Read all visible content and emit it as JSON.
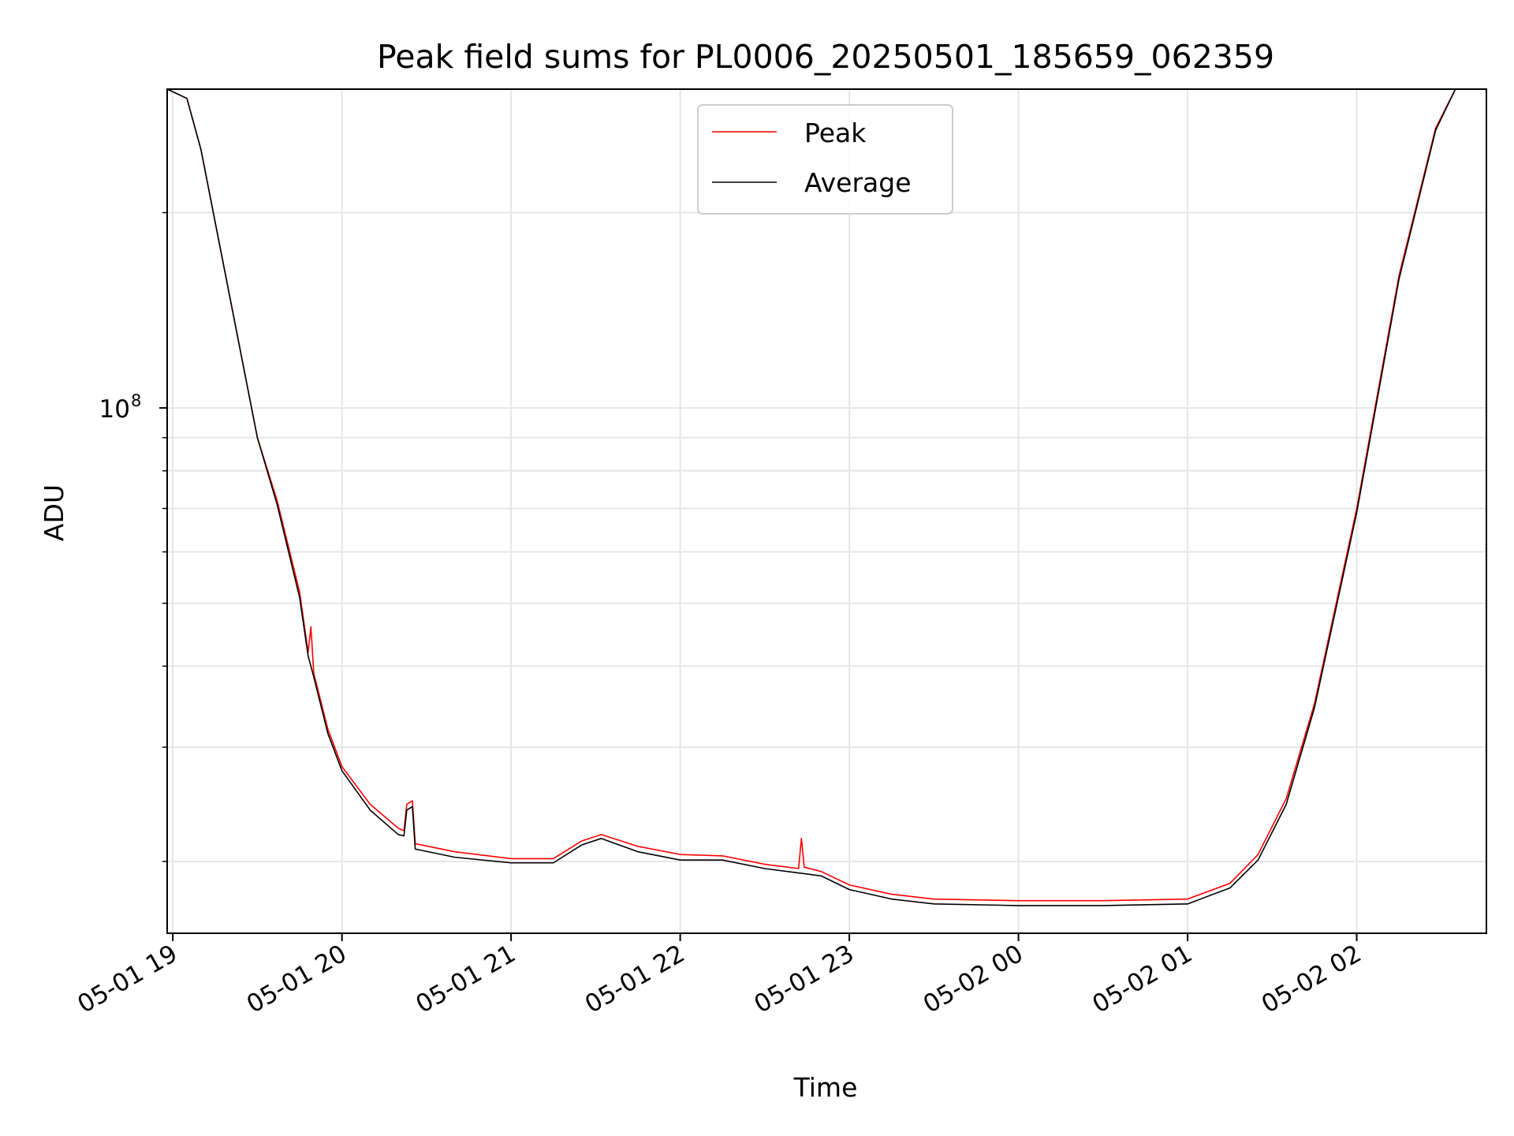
{
  "chart_data": {
    "type": "line",
    "title": "Peak field sums for PL0006_20250501_185659_062359",
    "xlabel": "Time",
    "ylabel": "ADU",
    "y_scale": "log",
    "grid": true,
    "legend_position": "top-center",
    "x_range": [
      "05-01 18:58",
      "05-02 02:46"
    ],
    "y_range": [
      15500000,
      310000000
    ],
    "x_ticks": [
      "05-01 19",
      "05-01 20",
      "05-01 21",
      "05-01 22",
      "05-01 23",
      "05-02 00",
      "05-02 01",
      "05-02 02"
    ],
    "y_major_tick": {
      "label_base": "10",
      "label_exp": "8",
      "value": 100000000
    },
    "y_minor_ticks": [
      20000000,
      30000000,
      40000000,
      50000000,
      60000000,
      70000000,
      80000000,
      90000000,
      200000000
    ],
    "series": [
      {
        "name": "Peak",
        "color": "#ff0000",
        "points": [
          [
            "05-01 18:58",
            310000000
          ],
          [
            "05-01 19:05",
            300000000
          ],
          [
            "05-01 19:10",
            250000000
          ],
          [
            "05-01 19:20",
            150000000
          ],
          [
            "05-01 19:30",
            90000000
          ],
          [
            "05-01 19:37",
            72000000
          ],
          [
            "05-01 19:45",
            52000000
          ],
          [
            "05-01 19:48",
            42000000
          ],
          [
            "05-01 19:49",
            46000000
          ],
          [
            "05-01 19:50",
            39000000
          ],
          [
            "05-01 19:55",
            32000000
          ],
          [
            "05-01 20:00",
            28000000
          ],
          [
            "05-01 20:10",
            24500000
          ],
          [
            "05-01 20:20",
            22500000
          ],
          [
            "05-01 20:22",
            22300000
          ],
          [
            "05-01 20:23",
            24500000
          ],
          [
            "05-01 20:25",
            24800000
          ],
          [
            "05-01 20:26",
            21300000
          ],
          [
            "05-01 20:40",
            20700000
          ],
          [
            "05-01 21:00",
            20200000
          ],
          [
            "05-01 21:15",
            20200000
          ],
          [
            "05-01 21:25",
            21500000
          ],
          [
            "05-01 21:32",
            22000000
          ],
          [
            "05-01 21:45",
            21100000
          ],
          [
            "05-01 22:00",
            20500000
          ],
          [
            "05-01 22:15",
            20400000
          ],
          [
            "05-01 22:30",
            19800000
          ],
          [
            "05-01 22:42",
            19500000
          ],
          [
            "05-01 22:43",
            21700000
          ],
          [
            "05-01 22:44",
            19600000
          ],
          [
            "05-01 22:50",
            19300000
          ],
          [
            "05-01 23:00",
            18400000
          ],
          [
            "05-01 23:15",
            17800000
          ],
          [
            "05-01 23:30",
            17500000
          ],
          [
            "05-02 00:00",
            17400000
          ],
          [
            "05-02 00:30",
            17400000
          ],
          [
            "05-02 01:00",
            17500000
          ],
          [
            "05-02 01:15",
            18500000
          ],
          [
            "05-02 01:25",
            20500000
          ],
          [
            "05-02 01:35",
            25000000
          ],
          [
            "05-02 01:45",
            35000000
          ],
          [
            "05-02 02:00",
            70000000
          ],
          [
            "05-02 02:15",
            160000000
          ],
          [
            "05-02 02:28",
            270000000
          ],
          [
            "05-02 02:35",
            310000000
          ],
          [
            "05-02 02:46",
            310000000
          ]
        ]
      },
      {
        "name": "Average",
        "color": "#000000",
        "points": [
          [
            "05-01 18:58",
            310000000
          ],
          [
            "05-01 19:05",
            300000000
          ],
          [
            "05-01 19:10",
            250000000
          ],
          [
            "05-01 19:20",
            150000000
          ],
          [
            "05-01 19:30",
            90000000
          ],
          [
            "05-01 19:37",
            71000000
          ],
          [
            "05-01 19:45",
            51000000
          ],
          [
            "05-01 19:48",
            41500000
          ],
          [
            "05-01 19:50",
            38500000
          ],
          [
            "05-01 19:55",
            31500000
          ],
          [
            "05-01 20:00",
            27600000
          ],
          [
            "05-01 20:10",
            24000000
          ],
          [
            "05-01 20:20",
            22000000
          ],
          [
            "05-01 20:22",
            21900000
          ],
          [
            "05-01 20:23",
            24000000
          ],
          [
            "05-01 20:25",
            24300000
          ],
          [
            "05-01 20:26",
            20900000
          ],
          [
            "05-01 20:40",
            20300000
          ],
          [
            "05-01 21:00",
            19900000
          ],
          [
            "05-01 21:15",
            19900000
          ],
          [
            "05-01 21:25",
            21200000
          ],
          [
            "05-01 21:32",
            21700000
          ],
          [
            "05-01 21:45",
            20700000
          ],
          [
            "05-01 22:00",
            20100000
          ],
          [
            "05-01 22:15",
            20100000
          ],
          [
            "05-01 22:30",
            19500000
          ],
          [
            "05-01 22:42",
            19200000
          ],
          [
            "05-01 22:50",
            19000000
          ],
          [
            "05-01 23:00",
            18100000
          ],
          [
            "05-01 23:15",
            17500000
          ],
          [
            "05-01 23:30",
            17200000
          ],
          [
            "05-02 00:00",
            17100000
          ],
          [
            "05-02 00:30",
            17100000
          ],
          [
            "05-02 01:00",
            17200000
          ],
          [
            "05-02 01:15",
            18200000
          ],
          [
            "05-02 01:25",
            20100000
          ],
          [
            "05-02 01:35",
            24500000
          ],
          [
            "05-02 01:45",
            34500000
          ],
          [
            "05-02 02:00",
            69000000
          ],
          [
            "05-02 02:15",
            158000000
          ],
          [
            "05-02 02:28",
            268000000
          ],
          [
            "05-02 02:35",
            310000000
          ],
          [
            "05-02 02:46",
            310000000
          ]
        ]
      }
    ]
  }
}
